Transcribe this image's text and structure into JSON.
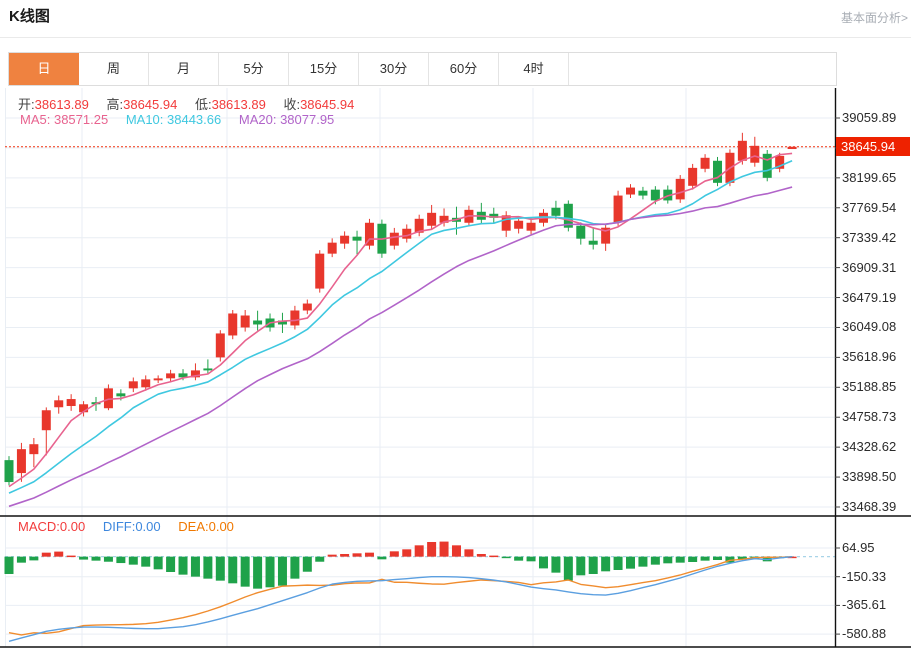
{
  "header": {
    "title": "K线图",
    "analysis_link": "基本面分析>"
  },
  "tabs": {
    "active_index": 0,
    "items": [
      {
        "name": "tab-day",
        "label": "日"
      },
      {
        "name": "tab-week",
        "label": "周"
      },
      {
        "name": "tab-month",
        "label": "月"
      },
      {
        "name": "tab-5min",
        "label": "5分"
      },
      {
        "name": "tab-15min",
        "label": "15分"
      },
      {
        "name": "tab-30min",
        "label": "30分"
      },
      {
        "name": "tab-60min",
        "label": "60分"
      },
      {
        "name": "tab-4hour",
        "label": "4时"
      }
    ]
  },
  "ohlc_bar": {
    "open_label": "开:",
    "open_value": "38613.89",
    "high_label": "高:",
    "high_value": "38645.94",
    "low_label": "低:",
    "low_value": "38613.89",
    "close_label": "收:",
    "close_value": "38645.94"
  },
  "ma_bar": {
    "ma5_label": "MA5: ",
    "ma5_value": "38571.25",
    "ma10_label": "MA10: ",
    "ma10_value": "38443.66",
    "ma20_label": "MA20: ",
    "ma20_value": "38077.95"
  },
  "macd_bar": {
    "macd_label": "MACD:",
    "macd_value": "0.00",
    "diff_label": "DIFF:",
    "diff_value": "0.00",
    "dea_label": "DEA:",
    "dea_value": "0.00"
  },
  "price_tag": {
    "value": "38645.94"
  },
  "colors": {
    "up": "#e8372c",
    "down": "#1fa24a",
    "ma5": "#e8638f",
    "ma10": "#3fc8e0",
    "ma20": "#b164c9",
    "diff_line": "#5b9fe0",
    "dea_line": "#f08c2e",
    "macd_label": "#f23b3b",
    "diff_label": "#3d87dd",
    "dea_label": "#f07800",
    "value_red": "#f23b3b",
    "price_line": "#f2320f",
    "price_tag_bg": "#ee2200",
    "tab_active_bg": "#ef8240",
    "grid": "#e9eef4",
    "zero_dash": "#a8d4e8",
    "axis_text": "#2b2b2b",
    "panel_border": "#111111"
  },
  "chart_data": {
    "type": "candlestick",
    "title": "K线图",
    "legend": [
      "MA5",
      "MA10",
      "MA20",
      "MACD",
      "DIFF",
      "DEA"
    ],
    "panels": {
      "price": {
        "axis_top_value": 39059.89,
        "axis_tick_interval": 430.115,
        "axis_ticks": [
          "39059.89",
          "",
          "38199.65",
          "37769.54",
          "37339.42",
          "36909.31",
          "36479.19",
          "36049.08",
          "35618.96",
          "35188.85",
          "34758.73",
          "34328.62",
          "33898.50",
          "33468.39"
        ],
        "current_price": 38645.94,
        "ma_periods": [
          5,
          10,
          20
        ],
        "candles_ohlc": [
          [
            34142,
            34200,
            33780,
            33827
          ],
          [
            33956,
            34390,
            33830,
            34300
          ],
          [
            34228,
            34460,
            34040,
            34371
          ],
          [
            34572,
            34900,
            34210,
            34859
          ],
          [
            34902,
            35070,
            34810,
            35002
          ],
          [
            34920,
            35090,
            34850,
            35020
          ],
          [
            34830,
            34990,
            34770,
            34945
          ],
          [
            34975,
            35050,
            34850,
            34945
          ],
          [
            34888,
            35230,
            34860,
            35174
          ],
          [
            35102,
            35160,
            35000,
            35059
          ],
          [
            35174,
            35330,
            35120,
            35275
          ],
          [
            35189,
            35360,
            35140,
            35303
          ],
          [
            35289,
            35360,
            35250,
            35317
          ],
          [
            35318,
            35440,
            35270,
            35389
          ],
          [
            35389,
            35450,
            35290,
            35332
          ],
          [
            35332,
            35533,
            35290,
            35432
          ],
          [
            35460,
            35590,
            35380,
            35432
          ],
          [
            35619,
            36010,
            35560,
            35963
          ],
          [
            35934,
            36300,
            35880,
            36250
          ],
          [
            36049,
            36300,
            35990,
            36221
          ],
          [
            36149,
            36290,
            36006,
            36092
          ],
          [
            36178,
            36250,
            35990,
            36049
          ],
          [
            36149,
            36260,
            35970,
            36092
          ],
          [
            36078,
            36360,
            36020,
            36293
          ],
          [
            36293,
            36450,
            36240,
            36393
          ],
          [
            36608,
            37160,
            36550,
            37110
          ],
          [
            37110,
            37330,
            37060,
            37268
          ],
          [
            37254,
            37430,
            37180,
            37368
          ],
          [
            37354,
            37440,
            37100,
            37297
          ],
          [
            37225,
            37610,
            37170,
            37554
          ],
          [
            37540,
            37600,
            37050,
            37110
          ],
          [
            37225,
            37480,
            37170,
            37411
          ],
          [
            37325,
            37530,
            37270,
            37468
          ],
          [
            37411,
            37670,
            37360,
            37611
          ],
          [
            37511,
            37810,
            37460,
            37697
          ],
          [
            37554,
            37760,
            37500,
            37654
          ],
          [
            37625,
            37785,
            37382,
            37568
          ],
          [
            37554,
            37800,
            37500,
            37740
          ],
          [
            37712,
            37840,
            37540,
            37597
          ],
          [
            37683,
            37770,
            37550,
            37625
          ],
          [
            37440,
            37720,
            37350,
            37660
          ],
          [
            37468,
            37640,
            37400,
            37583
          ],
          [
            37440,
            37620,
            37390,
            37554
          ],
          [
            37554,
            37750,
            37500,
            37697
          ],
          [
            37770,
            37870,
            37600,
            37654
          ],
          [
            37827,
            37875,
            37430,
            37483
          ],
          [
            37511,
            37560,
            37240,
            37325
          ],
          [
            37296,
            37490,
            37170,
            37239
          ],
          [
            37254,
            37530,
            37150,
            37483
          ],
          [
            37560,
            38015,
            37510,
            37945
          ],
          [
            37960,
            38110,
            37910,
            38060
          ],
          [
            38015,
            38070,
            37890,
            37945
          ],
          [
            38030,
            38080,
            37820,
            37875
          ],
          [
            38030,
            38090,
            37830,
            37875
          ],
          [
            37890,
            38240,
            37840,
            38185
          ],
          [
            38085,
            38400,
            38030,
            38343
          ],
          [
            38330,
            38540,
            38280,
            38488
          ],
          [
            38445,
            38500,
            38080,
            38128
          ],
          [
            38128,
            38610,
            38080,
            38560
          ],
          [
            38445,
            38847,
            38390,
            38732
          ],
          [
            38417,
            38790,
            38360,
            38660
          ],
          [
            38545,
            38600,
            38150,
            38200
          ],
          [
            38330,
            38560,
            38280,
            38516
          ],
          [
            38613.89,
            38645.94,
            38613.89,
            38645.94
          ]
        ]
      },
      "macd": {
        "axis_tick_interval": 215.28,
        "axis_ticks": [
          "64.95",
          "-150.33",
          "-365.61",
          "-580.88"
        ],
        "bars": [
          -130,
          -45,
          -28,
          30,
          38,
          8,
          -22,
          -30,
          -38,
          -48,
          -60,
          -75,
          -95,
          -115,
          -135,
          -150,
          -165,
          -180,
          -200,
          -225,
          -240,
          -230,
          -218,
          -165,
          -113,
          -38,
          15,
          20,
          25,
          30,
          -20,
          40,
          55,
          85,
          110,
          113,
          85,
          55,
          20,
          8,
          -8,
          -30,
          -35,
          -88,
          -120,
          -180,
          -140,
          -130,
          -110,
          -100,
          -90,
          -75,
          -60,
          -50,
          -45,
          -40,
          -30,
          -25,
          -45,
          -20,
          -15,
          -35,
          -10,
          0
        ],
        "diff": [
          -635,
          -610,
          -585,
          -560,
          -545,
          -535,
          -528,
          -528,
          -530,
          -534,
          -538,
          -540,
          -540,
          -533,
          -525,
          -510,
          -490,
          -466,
          -440,
          -415,
          -390,
          -360,
          -330,
          -300,
          -270,
          -235,
          -206,
          -193,
          -185,
          -182,
          -180,
          -172,
          -165,
          -157,
          -150,
          -150,
          -152,
          -157,
          -165,
          -176,
          -190,
          -208,
          -228,
          -240,
          -250,
          -265,
          -278,
          -285,
          -288,
          -275,
          -255,
          -232,
          -210,
          -185,
          -160,
          -130,
          -100,
          -72,
          -50,
          -30,
          -15,
          -22,
          -10,
          0
        ]
      }
    }
  }
}
